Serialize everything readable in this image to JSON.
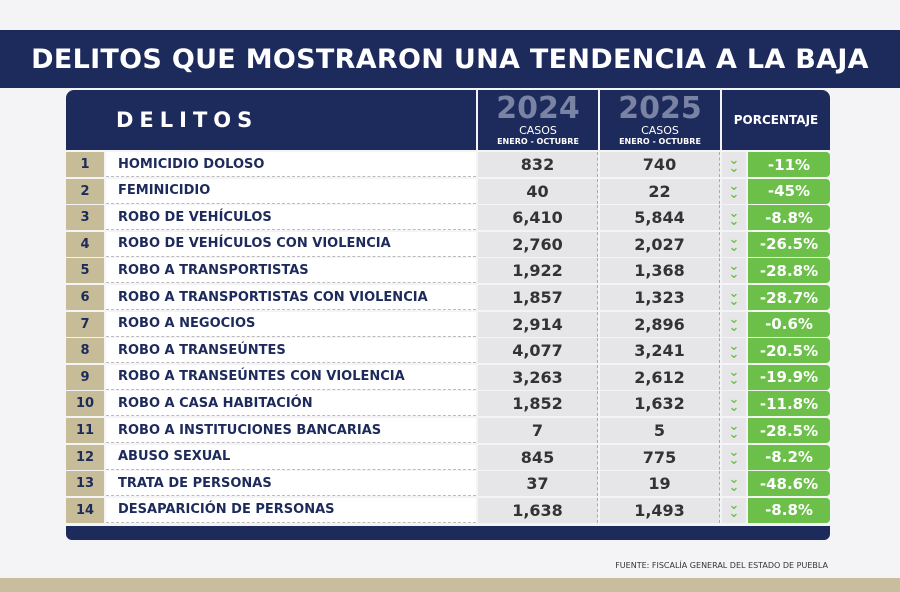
{
  "title": "DELITOS QUE MOSTRARON UNA TENDENCIA A LA BAJA",
  "header": {
    "delitos": "DELITOS",
    "col2024": {
      "year": "2024",
      "line1": "CASOS",
      "line2": "ENERO - OCTUBRE"
    },
    "col2025": {
      "year": "2025",
      "line1": "CASOS",
      "line2": "ENERO - OCTUBRE"
    },
    "porcentaje": "PORCENTAJE"
  },
  "rows": [
    {
      "n": "1",
      "name": "HOMICIDIO DOLOSO",
      "y2024": "832",
      "y2025": "740",
      "pct": "-11%"
    },
    {
      "n": "2",
      "name": "FEMINICIDIO",
      "y2024": "40",
      "y2025": "22",
      "pct": "-45%"
    },
    {
      "n": "3",
      "name": "ROBO DE VEHÍCULOS",
      "y2024": "6,410",
      "y2025": "5,844",
      "pct": "-8.8%"
    },
    {
      "n": "4",
      "name": "ROBO DE VEHÍCULOS CON VIOLENCIA",
      "y2024": "2,760",
      "y2025": "2,027",
      "pct": "-26.5%"
    },
    {
      "n": "5",
      "name": "ROBO A TRANSPORTISTAS",
      "y2024": "1,922",
      "y2025": "1,368",
      "pct": "-28.8%"
    },
    {
      "n": "6",
      "name": "ROBO A TRANSPORTISTAS CON VIOLENCIA",
      "y2024": "1,857",
      "y2025": "1,323",
      "pct": "-28.7%"
    },
    {
      "n": "7",
      "name": "ROBO A NEGOCIOS",
      "y2024": "2,914",
      "y2025": "2,896",
      "pct": "-0.6%"
    },
    {
      "n": "8",
      "name": "ROBO A TRANSEÚNTES",
      "y2024": "4,077",
      "y2025": "3,241",
      "pct": "-20.5%"
    },
    {
      "n": "9",
      "name": "ROBO A TRANSEÚNTES CON VIOLENCIA",
      "y2024": "3,263",
      "y2025": "2,612",
      "pct": "-19.9%"
    },
    {
      "n": "10",
      "name": "ROBO A CASA HABITACIÓN",
      "y2024": "1,852",
      "y2025": "1,632",
      "pct": "-11.8%"
    },
    {
      "n": "11",
      "name": "ROBO A INSTITUCIONES BANCARIAS",
      "y2024": "7",
      "y2025": "5",
      "pct": "-28.5%"
    },
    {
      "n": "12",
      "name": "ABUSO SEXUAL",
      "y2024": "845",
      "y2025": "775",
      "pct": "-8.2%"
    },
    {
      "n": "13",
      "name": "TRATA DE PERSONAS",
      "y2024": "37",
      "y2025": "19",
      "pct": "-48.6%"
    },
    {
      "n": "14",
      "name": "DESAPARICIÓN DE PERSONAS",
      "y2024": "1,638",
      "y2025": "1,493",
      "pct": "-8.8%"
    }
  ],
  "source": "FUENTE: FISCALÍA GENERAL DEL ESTADO DE PUEBLA",
  "icons": {
    "trend": "double-chevron-down-icon"
  },
  "colors": {
    "navy": "#1d2a5c",
    "green": "#6cc04a",
    "gold": "#c6bc97"
  }
}
